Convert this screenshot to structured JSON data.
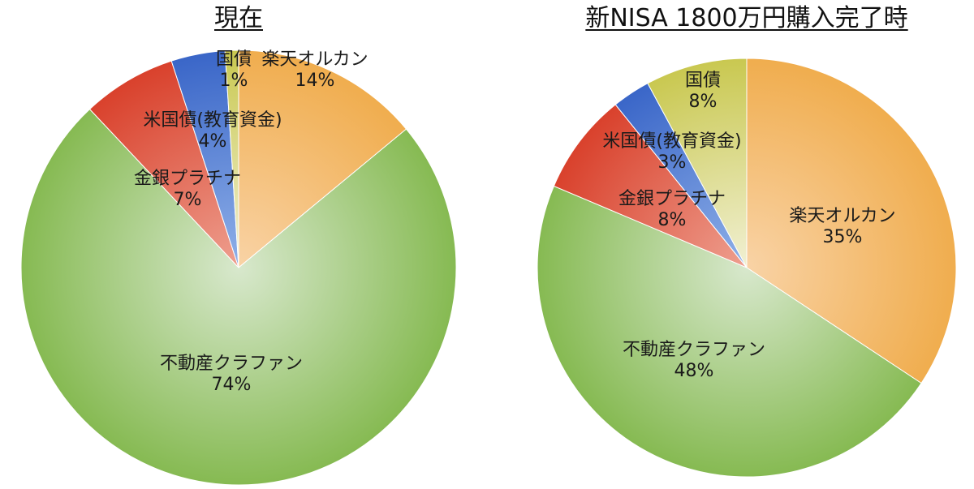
{
  "chart_data": [
    {
      "type": "pie",
      "title": "現在",
      "slices": [
        {
          "label": "楽天オルカン",
          "percent": "14%",
          "value": 14,
          "color_light": "#f9d3a6",
          "color_dark": "#f0ad4e"
        },
        {
          "label": "不動産クラファン",
          "percent": "74%",
          "value": 74,
          "color_light": "#d8e8cd",
          "color_dark": "#86ba52"
        },
        {
          "label": "金銀プラチナ",
          "percent": "7%",
          "value": 7,
          "color_light": "#ee9f8f",
          "color_dark": "#d9412c"
        },
        {
          "label": "米国債(教育資金)",
          "percent": "4%",
          "value": 4,
          "color_light": "#8fb0e8",
          "color_dark": "#3a66c8"
        },
        {
          "label": "国債",
          "percent": "1%",
          "value": 1,
          "color_light": "#f1f0d3",
          "color_dark": "#c9c850"
        }
      ]
    },
    {
      "type": "pie",
      "title": "新NISA 1800万円購入完了時",
      "slices": [
        {
          "label": "楽天オルカン",
          "percent": "35%",
          "value": 35,
          "color_light": "#f9d3a6",
          "color_dark": "#f0ad4e"
        },
        {
          "label": "不動産クラファン",
          "percent": "48%",
          "value": 48,
          "color_light": "#d8e8cd",
          "color_dark": "#86ba52"
        },
        {
          "label": "金銀プラチナ",
          "percent": "8%",
          "value": 8,
          "color_light": "#ee9f8f",
          "color_dark": "#d9412c"
        },
        {
          "label": "米国債(教育資金)",
          "percent": "3%",
          "value": 3,
          "color_light": "#8fb0e8",
          "color_dark": "#3a66c8"
        },
        {
          "label": "国債",
          "percent": "8%",
          "value": 8,
          "color_light": "#f1f0d3",
          "color_dark": "#c9c850"
        }
      ]
    }
  ]
}
